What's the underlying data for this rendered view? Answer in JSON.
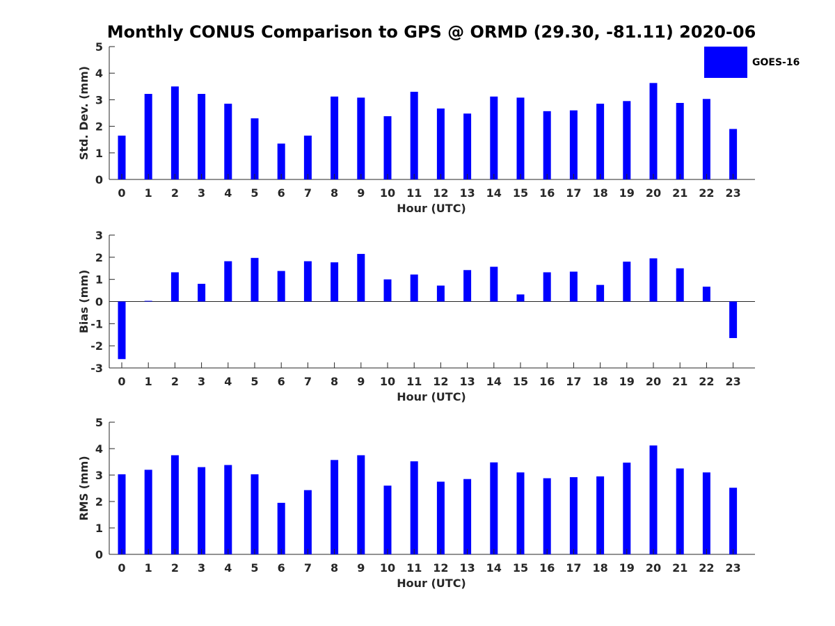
{
  "title": "Monthly CONUS Comparison to GPS @ ORMD (29.30, -81.11) 2020-06",
  "legend": {
    "label": "GOES-16",
    "color": "#0000ff"
  },
  "chart_data": [
    {
      "type": "bar",
      "name": "std-dev",
      "categories": [
        "0",
        "1",
        "2",
        "3",
        "4",
        "5",
        "6",
        "7",
        "8",
        "9",
        "10",
        "11",
        "12",
        "13",
        "14",
        "15",
        "16",
        "17",
        "18",
        "19",
        "20",
        "21",
        "22",
        "23"
      ],
      "values": [
        1.65,
        3.22,
        3.5,
        3.22,
        2.85,
        2.3,
        1.35,
        1.65,
        3.12,
        3.08,
        2.38,
        3.3,
        2.67,
        2.48,
        3.12,
        3.08,
        2.57,
        2.6,
        2.85,
        2.95,
        3.63,
        2.88,
        3.03,
        1.9
      ],
      "xlabel": "Hour (UTC)",
      "ylabel": "Std. Dev. (mm)",
      "ylim": [
        0,
        5
      ],
      "yticks": [
        0,
        1,
        2,
        3,
        4,
        5
      ],
      "color": "#0000ff",
      "legend": "top-right"
    },
    {
      "type": "bar",
      "name": "bias",
      "categories": [
        "0",
        "1",
        "2",
        "3",
        "4",
        "5",
        "6",
        "7",
        "8",
        "9",
        "10",
        "11",
        "12",
        "13",
        "14",
        "15",
        "16",
        "17",
        "18",
        "19",
        "20",
        "21",
        "22",
        "23"
      ],
      "values": [
        -2.6,
        0.03,
        1.32,
        0.8,
        1.82,
        1.97,
        1.38,
        1.82,
        1.77,
        2.15,
        1.0,
        1.22,
        0.72,
        1.42,
        1.57,
        0.32,
        1.32,
        1.35,
        0.75,
        1.8,
        1.95,
        1.5,
        0.67,
        -1.65
      ],
      "xlabel": "Hour (UTC)",
      "ylabel": "Bias (mm)",
      "ylim": [
        -3,
        3
      ],
      "yticks": [
        -3,
        -2,
        -1,
        0,
        1,
        2,
        3
      ],
      "color": "#0000ff"
    },
    {
      "type": "bar",
      "name": "rms",
      "categories": [
        "0",
        "1",
        "2",
        "3",
        "4",
        "5",
        "6",
        "7",
        "8",
        "9",
        "10",
        "11",
        "12",
        "13",
        "14",
        "15",
        "16",
        "17",
        "18",
        "19",
        "20",
        "21",
        "22",
        "23"
      ],
      "values": [
        3.03,
        3.2,
        3.75,
        3.3,
        3.38,
        3.03,
        1.95,
        2.43,
        3.57,
        3.75,
        2.6,
        3.52,
        2.75,
        2.85,
        3.48,
        3.1,
        2.88,
        2.92,
        2.95,
        3.47,
        4.12,
        3.25,
        3.1,
        2.52
      ],
      "xlabel": "Hour (UTC)",
      "ylabel": "RMS (mm)",
      "ylim": [
        0,
        5
      ],
      "yticks": [
        0,
        1,
        2,
        3,
        4,
        5
      ],
      "color": "#0000ff"
    }
  ]
}
